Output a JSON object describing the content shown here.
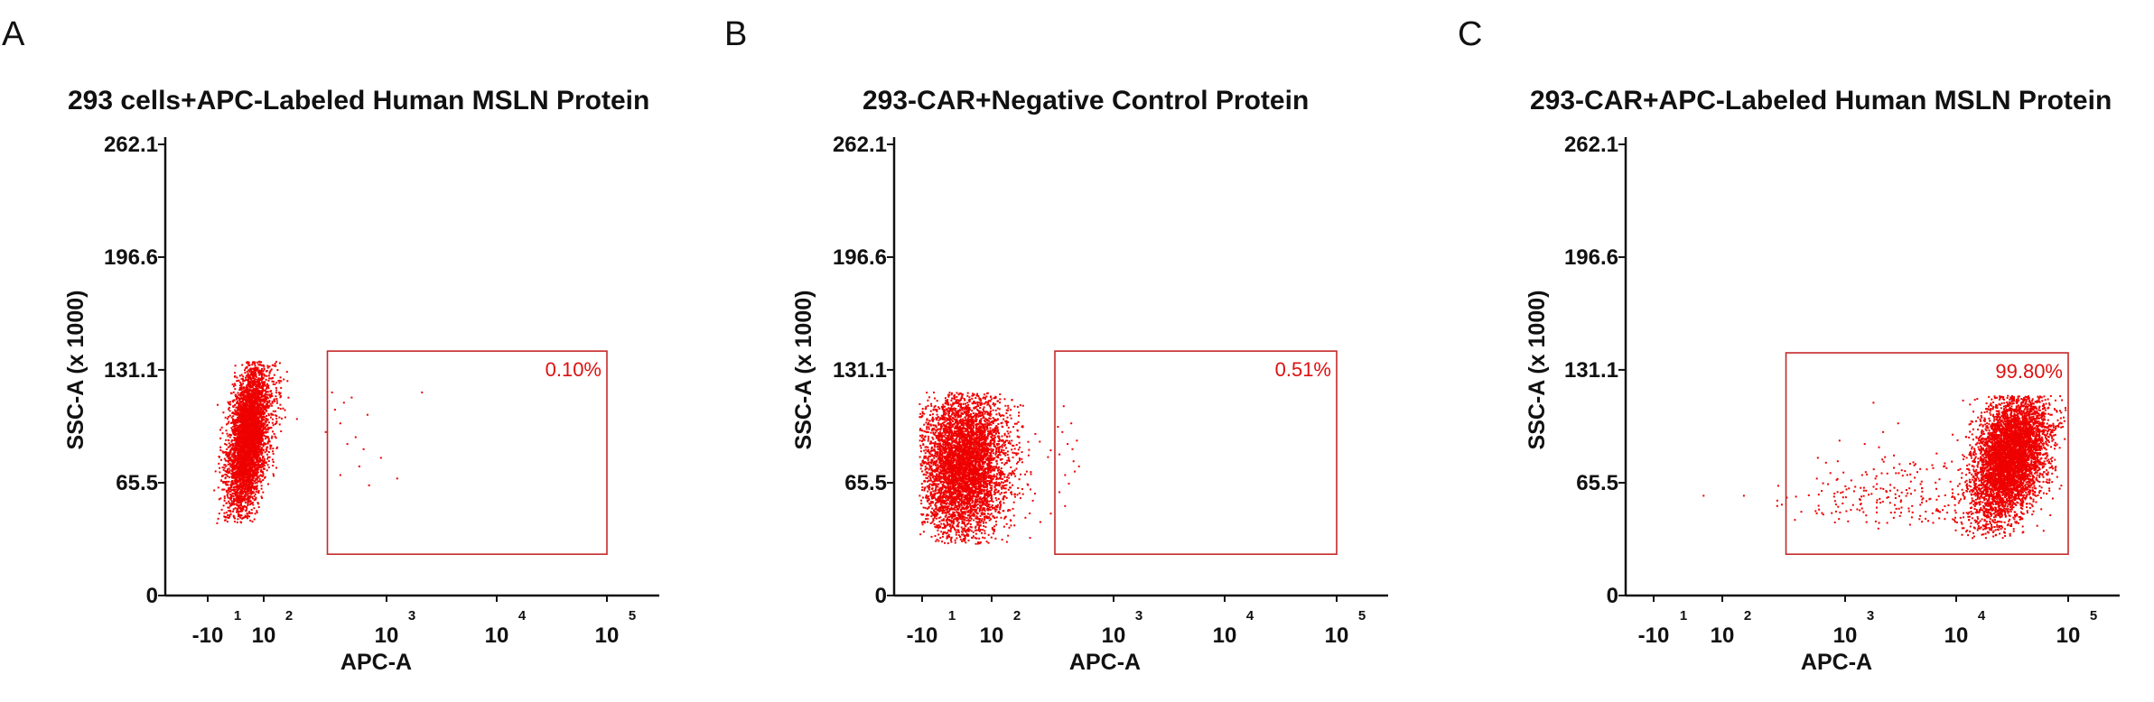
{
  "colors": {
    "dots": "#ee0000",
    "gate": "#c62828",
    "gate_label": "#dd1111",
    "axis": "#111111"
  },
  "chart_data": [
    {
      "type": "scatter",
      "panel": "A",
      "title": "293 cells+APC-Labeled Human MSLN Protein",
      "xlabel": "APC-A",
      "ylabel": "SSC-A (x 1000)",
      "x_scale": "biexponential",
      "x_ticks": [
        {
          "base": "-10",
          "exp": "1",
          "v": -10
        },
        {
          "base": "10",
          "exp": "2",
          "v": 100
        },
        {
          "base": "10",
          "exp": "3",
          "v": 1000
        },
        {
          "base": "10",
          "exp": "4",
          "v": 10000
        },
        {
          "base": "10",
          "exp": "5",
          "v": 100000
        }
      ],
      "y_ticks": [
        "262.1",
        "196.6",
        "131.1",
        "65.5",
        "0"
      ],
      "ylim": [
        0,
        262.1
      ],
      "gate": {
        "x_range": [
          330,
          100000
        ],
        "y_range": [
          24,
          142
        ],
        "label": "0.10%"
      },
      "populations": [
        {
          "n": 4600,
          "cx": 70,
          "sx": 0.12,
          "cy": 92,
          "sy": 22,
          "rho": 0.45,
          "ymin": 42,
          "ymax": 136,
          "xmin": -10,
          "xmax": 250
        }
      ],
      "outliers": [
        [
          320,
          95
        ],
        [
          360,
          118
        ],
        [
          380,
          108
        ],
        [
          420,
          100
        ],
        [
          450,
          112
        ],
        [
          480,
          88
        ],
        [
          520,
          115
        ],
        [
          560,
          92
        ],
        [
          600,
          75
        ],
        [
          650,
          85
        ],
        [
          720,
          64
        ],
        [
          900,
          80
        ],
        [
          1250,
          68
        ],
        [
          2100,
          118
        ],
        [
          420,
          70
        ],
        [
          700,
          105
        ]
      ]
    },
    {
      "type": "scatter",
      "panel": "B",
      "title": "293-CAR+Negative Control Protein",
      "xlabel": "APC-A",
      "ylabel": "SSC-A (x 1000)",
      "x_scale": "biexponential",
      "x_ticks": [
        {
          "base": "-10",
          "exp": "1",
          "v": -10
        },
        {
          "base": "10",
          "exp": "2",
          "v": 100
        },
        {
          "base": "10",
          "exp": "3",
          "v": 1000
        },
        {
          "base": "10",
          "exp": "4",
          "v": 10000
        },
        {
          "base": "10",
          "exp": "5",
          "v": 100000
        }
      ],
      "y_ticks": [
        "262.1",
        "196.6",
        "131.1",
        "65.5",
        "0"
      ],
      "ylim": [
        0,
        262.1
      ],
      "gate": {
        "x_range": [
          330,
          100000
        ],
        "y_range": [
          24,
          142
        ],
        "label": "0.51%"
      },
      "populations": [
        {
          "n": 5200,
          "cx": 55,
          "sx": 0.2,
          "cy": 76,
          "sy": 21,
          "rho": 0.05,
          "ymin": 30,
          "ymax": 118,
          "xmin": -14,
          "xmax": 340
        }
      ],
      "outliers": [
        [
          360,
          82
        ],
        [
          380,
          95
        ],
        [
          400,
          70
        ],
        [
          420,
          88
        ],
        [
          450,
          100
        ],
        [
          470,
          78
        ],
        [
          500,
          90
        ],
        [
          360,
          60
        ],
        [
          390,
          110
        ],
        [
          430,
          65
        ],
        [
          520,
          75
        ],
        [
          400,
          52
        ],
        [
          460,
          85
        ],
        [
          350,
          98
        ],
        [
          480,
          72
        ]
      ]
    },
    {
      "type": "scatter",
      "panel": "C",
      "title": "293-CAR+APC-Labeled Human MSLN Protein",
      "xlabel": "APC-A",
      "ylabel": "SSC-A (x 1000)",
      "x_scale": "biexponential",
      "x_ticks": [
        {
          "base": "-10",
          "exp": "1",
          "v": -10
        },
        {
          "base": "10",
          "exp": "2",
          "v": 100
        },
        {
          "base": "10",
          "exp": "3",
          "v": 1000
        },
        {
          "base": "10",
          "exp": "4",
          "v": 10000
        },
        {
          "base": "10",
          "exp": "5",
          "v": 100000
        }
      ],
      "y_ticks": [
        "262.1",
        "196.6",
        "131.1",
        "65.5",
        "0"
      ],
      "ylim": [
        0,
        262.1
      ],
      "gate": {
        "x_range": [
          330,
          100000
        ],
        "y_range": [
          24,
          141
        ],
        "label": "99.80%"
      },
      "populations": [
        {
          "n": 5400,
          "cx": 30000,
          "sx": 0.17,
          "cy": 80,
          "sy": 19,
          "rho": 0.4,
          "ymin": 33,
          "ymax": 116,
          "xmin": 9000,
          "xmax": 95000
        },
        {
          "n": 230,
          "cx": 2500,
          "sx": 0.45,
          "cy": 58,
          "sy": 11,
          "rho": 0.0,
          "ymin": 38,
          "ymax": 92,
          "xmin": 280,
          "xmax": 12000
        }
      ],
      "outliers": [
        [
          70,
          58
        ],
        [
          150,
          58
        ],
        [
          1800,
          112
        ],
        [
          1500,
          88
        ],
        [
          2200,
          95
        ],
        [
          900,
          90
        ],
        [
          600,
          80
        ],
        [
          3000,
          100
        ],
        [
          280,
          52
        ]
      ]
    }
  ]
}
